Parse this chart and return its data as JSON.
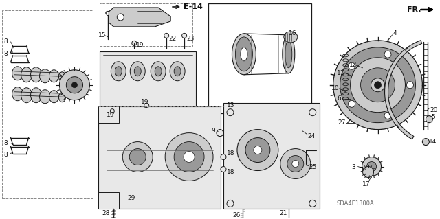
{
  "bg_color": "#ffffff",
  "line_color": "#1a1a1a",
  "gray_fill": "#e8e8e8",
  "dark_gray": "#666666",
  "mid_gray": "#999999",
  "light_gray": "#cccccc",
  "watermark": "SDA4E1300A",
  "arrow_label": "FR.",
  "ref_label": "E-14",
  "font_color": "#111111",
  "dashed_color": "#888888",
  "label_font": 6.5,
  "bold_font": 8
}
